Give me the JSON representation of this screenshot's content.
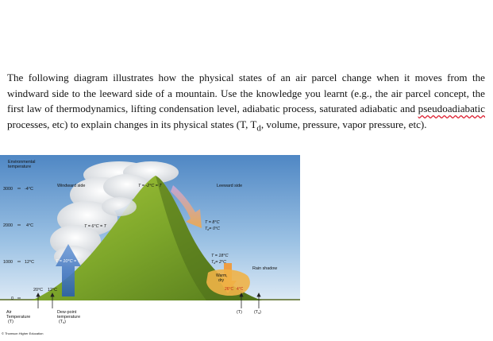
{
  "question": {
    "part1": "The following diagram illustrates how the physical states of an air parcel change when it moves from the windward side to the leeward side of a mountain. Use the knowledge you learnt (e.g., the air parcel concept, the first law of thermodynamics, lifting condensation level, adiabatic process, saturated adiabatic and ",
    "misspelled": "pseudoadiabatic",
    "part2": " processes, etc) to explain changes in its physical states (T, T",
    "sub_d": "d",
    "part3": ", volume, pressure, vapor pressure, etc)."
  },
  "figure": {
    "env_temp_label_1": "Environmental",
    "env_temp_label_2": "temperature",
    "altitudes": [
      {
        "alt": "3000",
        "temp": "-4°C"
      },
      {
        "alt": "2000",
        "temp": "4°C"
      },
      {
        "alt": "1000",
        "temp": "12°C"
      },
      {
        "alt": "0",
        "temp": ""
      }
    ],
    "windward_label": "Windward side",
    "leeward_label": "Leeward side",
    "summit_label": "T = -2°C = T",
    "windward_2000": "T = 6°C = T",
    "windward_1000": "T = 10°C = T",
    "lee_2000_t": "T = 8°C",
    "lee_2000_td": "T",
    "lee_2000_td_val": "= 0°C",
    "lee_1000_t": "T = 18°C",
    "lee_1000_td": "T",
    "lee_1000_td_val": "= 2°C",
    "rain_shadow": "Rain shadow",
    "warm_1": "Warm,",
    "warm_2": "dry",
    "lee_surface_t": "26°C",
    "lee_surface_td": "4°C",
    "surface_t": "20°C",
    "surface_td": "12°C",
    "air_temp_1": "Air",
    "air_temp_2": "Temperature",
    "air_temp_3": "(T)",
    "dew_1": "Dew-point",
    "dew_2": "temperature",
    "dew_3": "(T",
    "lee_t_sym": "(T)",
    "lee_td_sym": "(T",
    "sub_d": "d",
    "copyright": "© Thomson Higher Education"
  }
}
